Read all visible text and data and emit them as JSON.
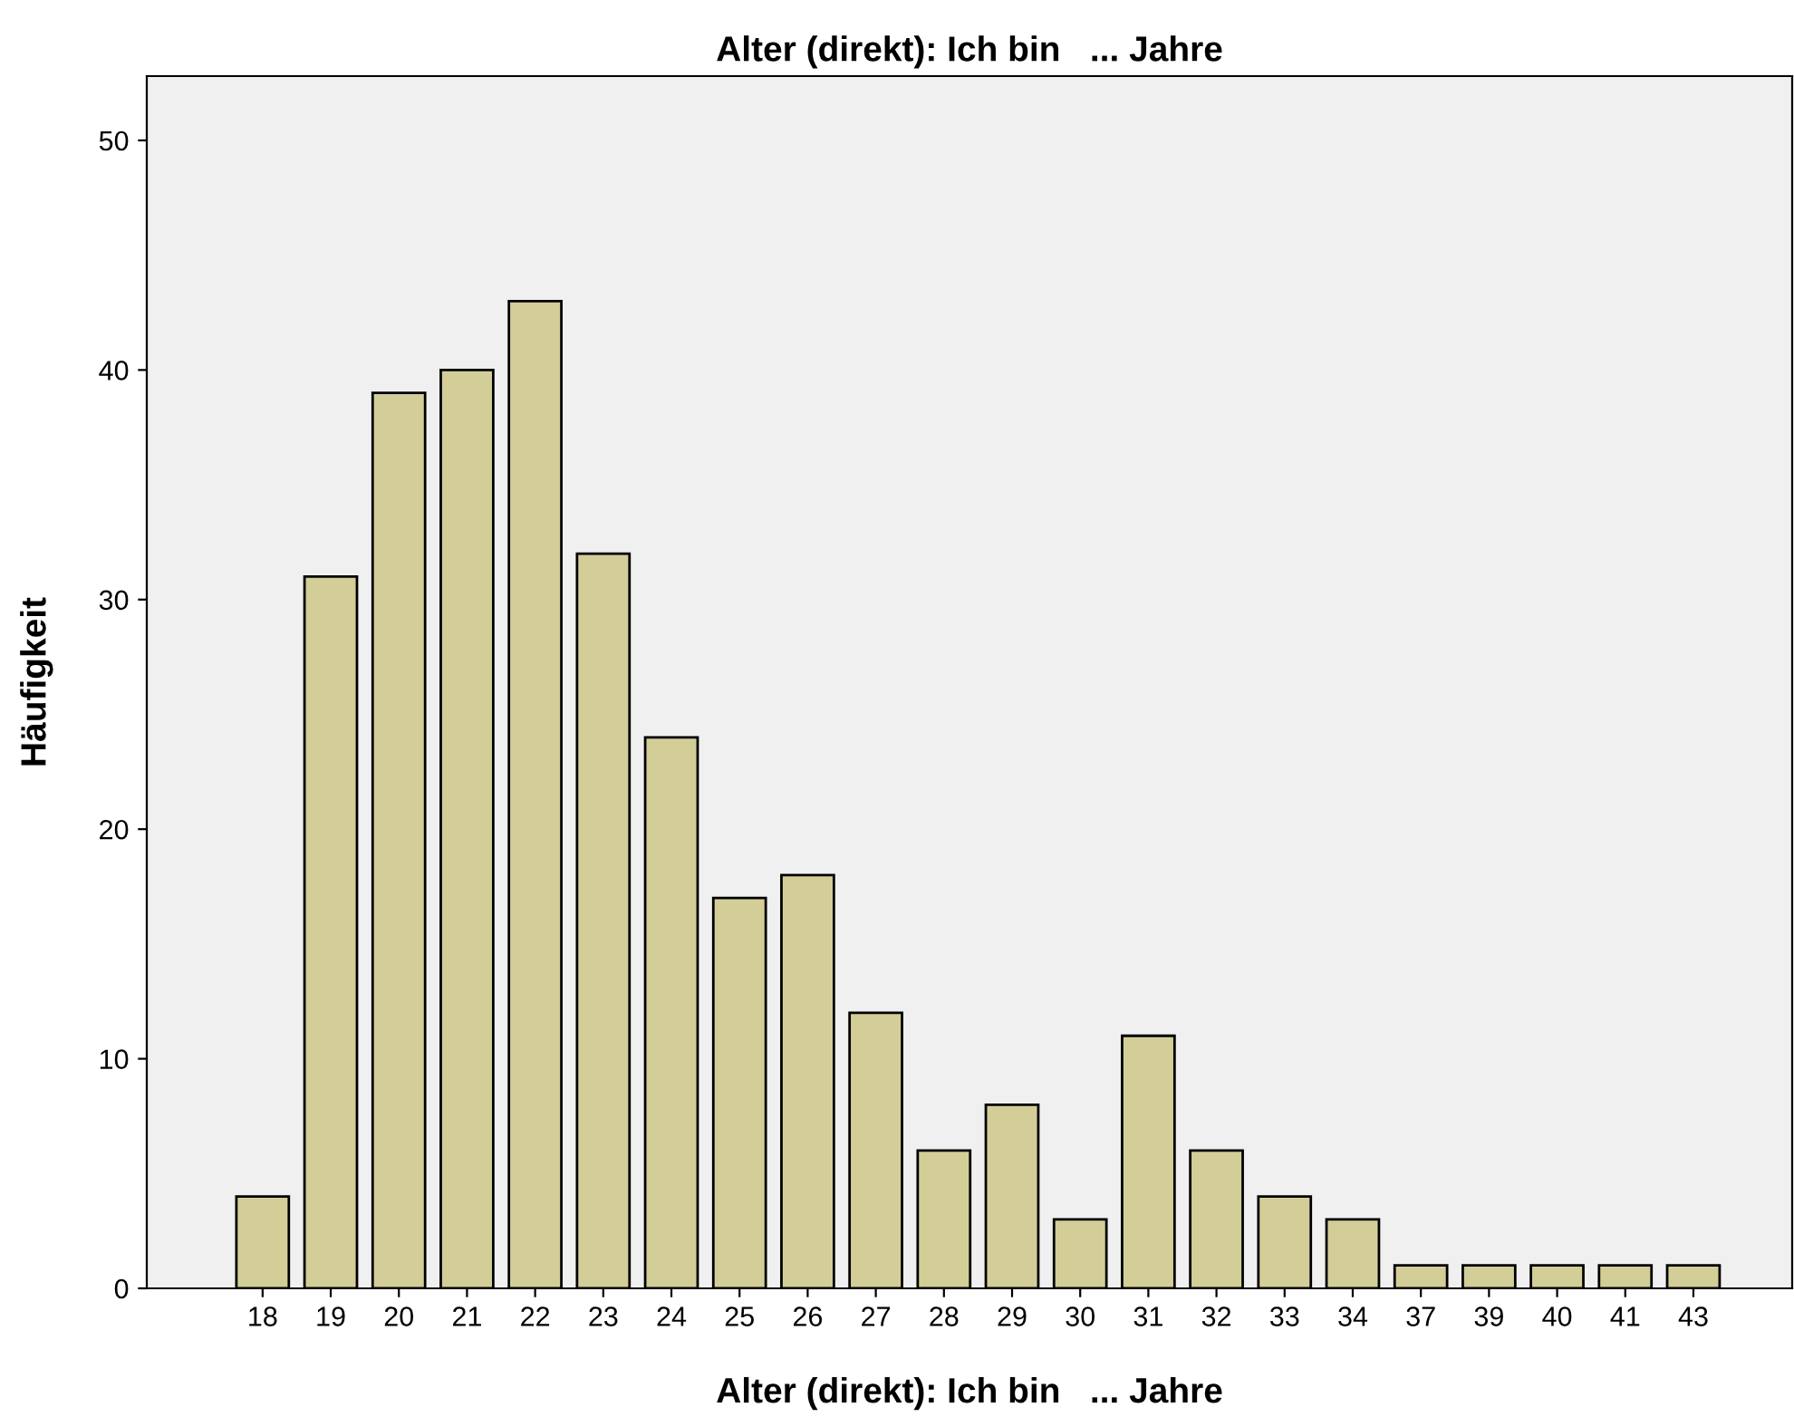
{
  "chart_data": {
    "type": "bar",
    "title": "Alter (direkt): Ich bin   ... Jahre",
    "xlabel": "Alter (direkt): Ich bin   ... Jahre",
    "ylabel": "Häufigkeit",
    "categories": [
      "18",
      "19",
      "20",
      "21",
      "22",
      "23",
      "24",
      "25",
      "26",
      "27",
      "28",
      "29",
      "30",
      "31",
      "32",
      "33",
      "34",
      "37",
      "39",
      "40",
      "41",
      "43"
    ],
    "values": [
      4,
      31,
      39,
      40,
      43,
      32,
      24,
      17,
      18,
      12,
      6,
      8,
      3,
      11,
      6,
      4,
      3,
      1,
      1,
      1,
      1,
      1
    ],
    "color": "#d3ce97",
    "ylim": [
      0,
      52.8
    ],
    "yticks": [
      0,
      10,
      20,
      30,
      40,
      50
    ],
    "grid": false
  }
}
